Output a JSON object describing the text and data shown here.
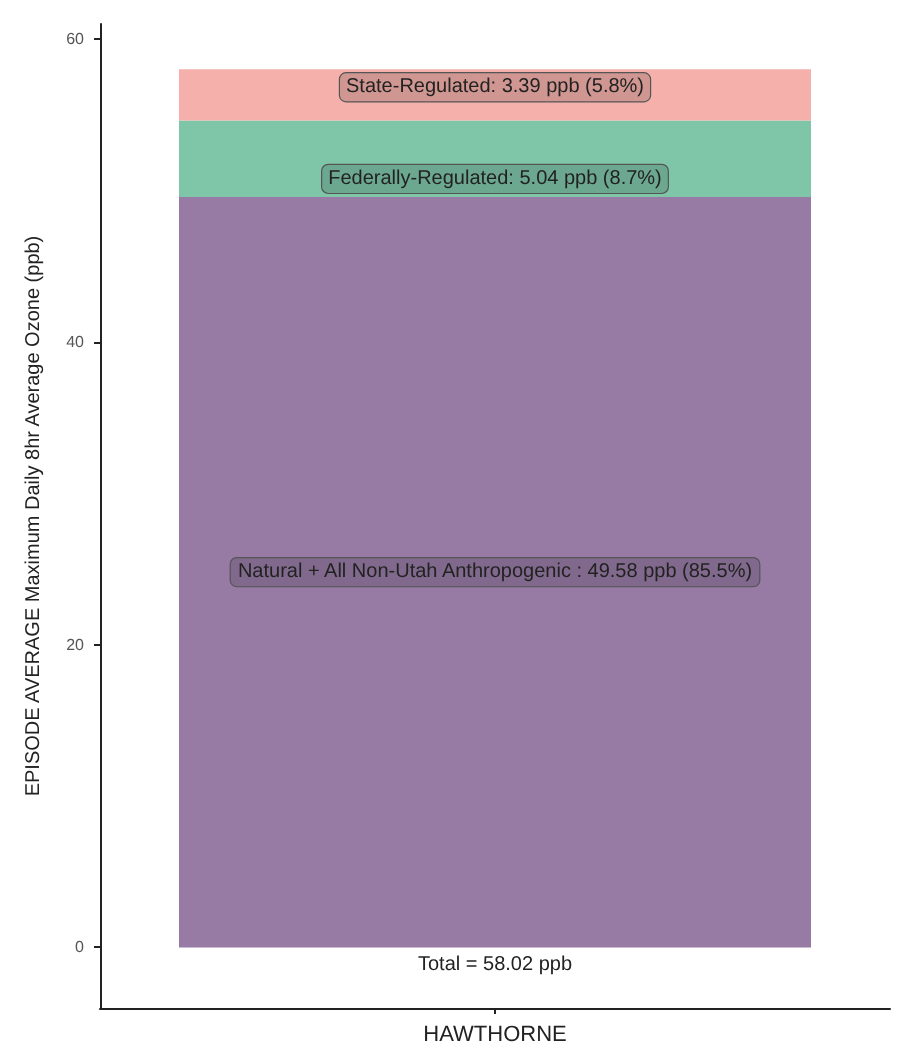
{
  "chart_data": {
    "type": "bar",
    "stacked": true,
    "ylabel": "EPISODE AVERAGE Maximum Daily 8hr Average Ozone (ppb)",
    "categories": [
      "HAWTHORNE"
    ],
    "series": [
      {
        "color": "#977ba5",
        "values": [
          49.58
        ],
        "value_labels": [
          "Natural + All Non-Utah Anthropogenic : 49.58 ppb (85.5%)"
        ]
      },
      {
        "color": "#7fc6a8",
        "values": [
          5.04
        ],
        "value_labels": [
          "Federally-Regulated: 5.04 ppb (8.7%)"
        ]
      },
      {
        "color": "#f5b0ab",
        "values": [
          3.39
        ],
        "value_labels": [
          "State-Regulated: 3.39 ppb (5.8%)"
        ]
      }
    ],
    "totals": [
      "Total = 58.02 ppb"
    ],
    "ylim": [
      -4,
      61
    ],
    "yticks": [
      0,
      20,
      40,
      60
    ]
  }
}
